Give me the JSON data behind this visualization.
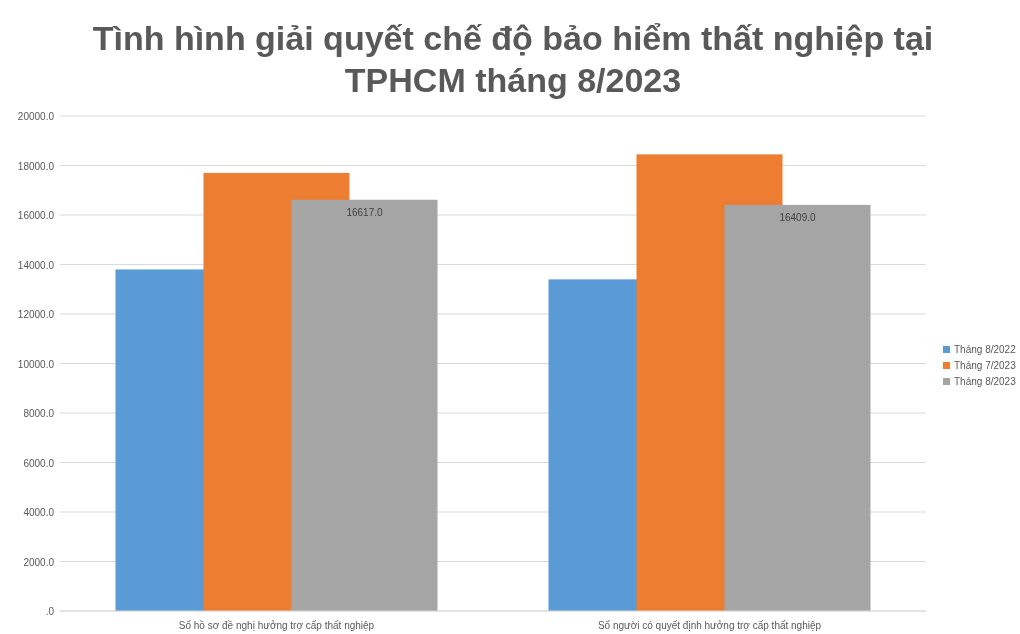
{
  "chart_data": {
    "type": "bar",
    "title": "Tình hình giải quyết chế độ bảo hiểm thất nghiệp tại TPHCM tháng 8/2023",
    "categories": [
      "Số hồ sơ đề nghị hưởng trợ cấp thất nghiệp",
      "Số người có quyết định hưởng trợ cấp thất nghiệp"
    ],
    "series": [
      {
        "name": "Tháng 8/2022",
        "color": "#5b9bd5",
        "values": [
          13800,
          13400
        ]
      },
      {
        "name": "Tháng 7/2023",
        "color": "#ed7d31",
        "values": [
          17700,
          18450
        ]
      },
      {
        "name": "Tháng 8/2023",
        "color": "#a5a5a5",
        "values": [
          16617,
          16409
        ],
        "value_labels": [
          "16617.0",
          "16409.0"
        ]
      }
    ],
    "ylim": [
      0,
      20000
    ],
    "yticks": [
      {
        "value": 0,
        "label": ".0"
      },
      {
        "value": 2000,
        "label": "2000.0"
      },
      {
        "value": 4000,
        "label": "4000.0"
      },
      {
        "value": 6000,
        "label": "6000.0"
      },
      {
        "value": 8000,
        "label": "8000.0"
      },
      {
        "value": 10000,
        "label": "10000.0"
      },
      {
        "value": 12000,
        "label": "12000.0"
      },
      {
        "value": 14000,
        "label": "14000.0"
      },
      {
        "value": 16000,
        "label": "16000.0"
      },
      {
        "value": 18000,
        "label": "18000.0"
      },
      {
        "value": 20000,
        "label": "20000.0"
      }
    ],
    "grid": "y",
    "legend": "right"
  }
}
